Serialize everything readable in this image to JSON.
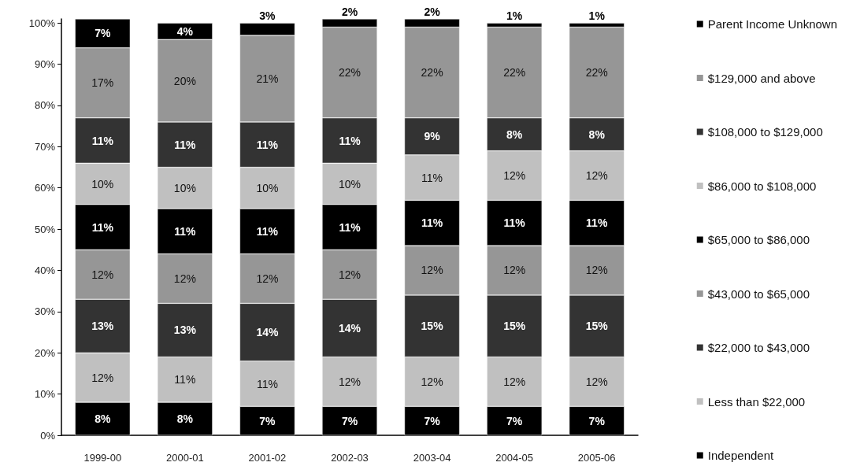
{
  "chart_data": {
    "type": "bar",
    "stacked": true,
    "categories": [
      "1999-00",
      "2000-01",
      "2001-02",
      "2002-03",
      "2003-04",
      "2004-05",
      "2005-06"
    ],
    "ylim": [
      0,
      101
    ],
    "yticks": [
      {
        "value": 0,
        "label": "0%"
      },
      {
        "value": 10,
        "label": "10%"
      },
      {
        "value": 20,
        "label": "20%"
      },
      {
        "value": 30,
        "label": "30%"
      },
      {
        "value": 40,
        "label": "40%"
      },
      {
        "value": 50,
        "label": "50%"
      },
      {
        "value": 60,
        "label": "60%"
      },
      {
        "value": 70,
        "label": "70%"
      },
      {
        "value": 80,
        "label": "80%"
      },
      {
        "value": 90,
        "label": "90%"
      },
      {
        "value": 100,
        "label": "100%"
      }
    ],
    "grid": false,
    "legend": "right",
    "series": [
      {
        "name": "Independent",
        "color": "#000000",
        "values": [
          8,
          8,
          7,
          7,
          7,
          7,
          7
        ],
        "value_labels": [
          "8%",
          "8%",
          "7%",
          "7%",
          "7%",
          "7%",
          "7%"
        ]
      },
      {
        "name": "Less than $22,000",
        "color": "#c0c0c0",
        "values": [
          12,
          11,
          11,
          12,
          12,
          12,
          12
        ],
        "value_labels": [
          "12%",
          "11%",
          "11%",
          "12%",
          "12%",
          "12%",
          "12%"
        ]
      },
      {
        "name": "$22,000 to $43,000",
        "color": "#333333",
        "values": [
          13,
          13,
          14,
          14,
          15,
          15,
          15
        ],
        "value_labels": [
          "13%",
          "13%",
          "14%",
          "14%",
          "15%",
          "15%",
          "15%"
        ]
      },
      {
        "name": "$43,000 to $65,000",
        "color": "#969696",
        "values": [
          12,
          12,
          12,
          12,
          12,
          12,
          12
        ],
        "value_labels": [
          "12%",
          "12%",
          "12%",
          "12%",
          "12%",
          "12%",
          "12%"
        ]
      },
      {
        "name": "$65,000 to $86,000",
        "color": "#000000",
        "values": [
          11,
          11,
          11,
          11,
          11,
          11,
          11
        ],
        "value_labels": [
          "11%",
          "11%",
          "11%",
          "11%",
          "11%",
          "11%",
          "11%"
        ]
      },
      {
        "name": "$86,000 to $108,000",
        "color": "#c0c0c0",
        "values": [
          10,
          10,
          10,
          10,
          11,
          12,
          12
        ],
        "value_labels": [
          "10%",
          "10%",
          "10%",
          "10%",
          "11%",
          "12%",
          "12%"
        ]
      },
      {
        "name": "$108,000 to $129,000",
        "color": "#333333",
        "values": [
          11,
          11,
          11,
          11,
          9,
          8,
          8
        ],
        "value_labels": [
          "11%",
          "11%",
          "11%",
          "11%",
          "9%",
          "8%",
          "8%"
        ]
      },
      {
        "name": "$129,000 and above",
        "color": "#969696",
        "values": [
          17,
          20,
          21,
          22,
          22,
          22,
          22
        ],
        "value_labels": [
          "17%",
          "20%",
          "21%",
          "22%",
          "22%",
          "22%",
          "22%"
        ]
      },
      {
        "name": "Parent Income Unknown",
        "color": "#000000",
        "values": [
          7,
          4,
          3,
          2,
          2,
          1,
          1
        ],
        "value_labels": [
          "7%",
          "4%",
          "3%",
          "2%",
          "2%",
          "1%",
          "1%"
        ]
      }
    ]
  }
}
